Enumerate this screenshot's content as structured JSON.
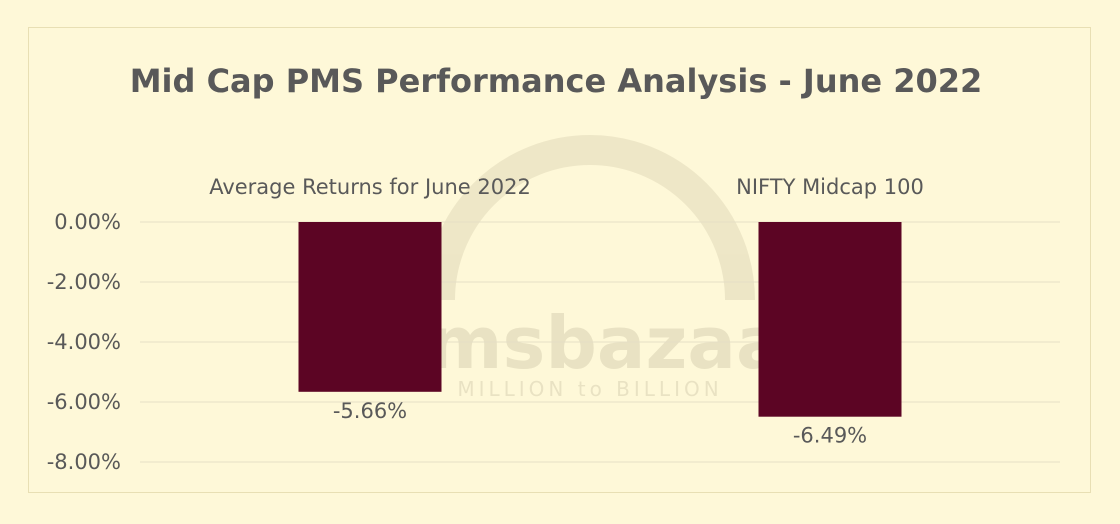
{
  "chart_data": {
    "type": "bar",
    "title": "Mid Cap PMS Performance Analysis - June 2022",
    "categories": [
      "Average Returns for June 2022",
      "NIFTY Midcap 100"
    ],
    "values": [
      -5.66,
      -6.49
    ],
    "data_labels": [
      "-5.66%",
      "-6.49%"
    ],
    "ylim": [
      -8,
      0
    ],
    "yticks": [
      "0.00%",
      "-2.00%",
      "-4.00%",
      "-6.00%",
      "-8.00%"
    ],
    "ytick_values": [
      0,
      -2,
      -4,
      -6,
      -8
    ],
    "category_labels_position": "top",
    "grid": true,
    "legend": "none",
    "colors": {
      "bar": "#5c0524",
      "grid": "#e5dfc6",
      "text": "#595959",
      "background": "#fef8d8"
    }
  },
  "watermark": {
    "brand": "pmsbazaar",
    "tagline": "MILLION to BILLION"
  }
}
